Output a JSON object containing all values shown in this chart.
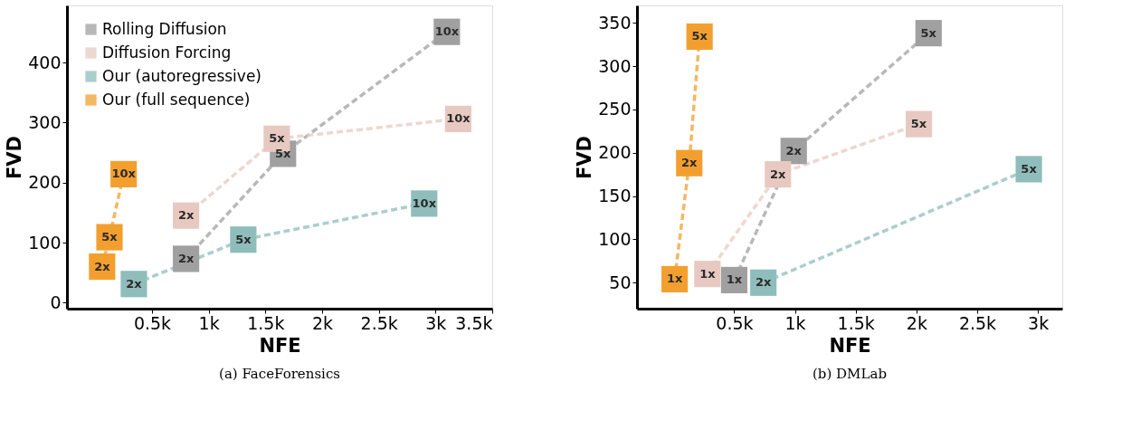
{
  "chart_data": [
    {
      "type": "line",
      "xlabel": "NFE",
      "ylabel": "FVD",
      "marker": "square",
      "line_style": "dashed",
      "grid": false,
      "legend": "top left",
      "annotations": [
        "(a) FaceForensics",
        {
          "text": "2x",
          "x": 800,
          "y": 73
        },
        {
          "text": "5x",
          "x": 1655,
          "y": 248
        },
        {
          "text": "10x",
          "x": 3100,
          "y": 451
        },
        {
          "text": "2x",
          "x": 800,
          "y": 145
        },
        {
          "text": "5x",
          "x": 1600,
          "y": 273
        },
        {
          "text": "10x",
          "x": 3200,
          "y": 306
        },
        {
          "text": "2x",
          "x": 340,
          "y": 31
        },
        {
          "text": "5x",
          "x": 1305,
          "y": 105
        },
        {
          "text": "10x",
          "x": 2900,
          "y": 165
        },
        {
          "text": "2x",
          "x": 60,
          "y": 60
        },
        {
          "text": "5x",
          "x": 125,
          "y": 109
        },
        {
          "text": "10x",
          "x": 250,
          "y": 214
        }
      ],
      "xlim": [
        -250,
        3500
      ],
      "xticks": [
        {
          "value": 500,
          "label": "0.5k"
        },
        {
          "value": 1000,
          "label": "1k"
        },
        {
          "value": 1500,
          "label": "1.5k"
        },
        {
          "value": 2000,
          "label": "2k"
        },
        {
          "value": 2500,
          "label": "2.5k"
        },
        {
          "value": 3000,
          "label": "3k"
        },
        {
          "value": 3500,
          "label": "3.5k"
        }
      ],
      "ylim": [
        -10,
        495
      ],
      "yticks": [
        0,
        100,
        200,
        300,
        400
      ],
      "series": [
        {
          "name": "Rolling Diffusion",
          "color": "#a0a0a0",
          "x": [
            800,
            1655,
            3100
          ],
          "values": [
            73,
            248,
            451
          ]
        },
        {
          "name": "Diffusion Forcing",
          "color": "#e8c9c2",
          "x": [
            800,
            1600,
            3200
          ],
          "values": [
            145,
            273,
            306
          ]
        },
        {
          "name": "Our (autoregressive)",
          "color": "#8fbdbc",
          "x": [
            340,
            1305,
            2900
          ],
          "values": [
            31,
            105,
            165
          ]
        },
        {
          "name": "Our (full sequence)",
          "color": "#f39f2f",
          "x": [
            60,
            125,
            250
          ],
          "values": [
            60,
            109,
            214
          ]
        }
      ]
    },
    {
      "type": "line",
      "xlabel": "NFE",
      "ylabel": "FVD",
      "marker": "square",
      "line_style": "dashed",
      "grid": false,
      "legend": false,
      "annotations": [
        "(b) DMLab",
        {
          "text": "1x",
          "x": 500,
          "y": 53
        },
        {
          "text": "2x",
          "x": 990,
          "y": 202
        },
        {
          "text": "5x",
          "x": 2100,
          "y": 338
        },
        {
          "text": "1x",
          "x": 280,
          "y": 60
        },
        {
          "text": "2x",
          "x": 860,
          "y": 175
        },
        {
          "text": "5x",
          "x": 2020,
          "y": 233
        },
        {
          "text": "2x",
          "x": 740,
          "y": 50
        },
        {
          "text": "5x",
          "x": 2925,
          "y": 181
        },
        {
          "text": "1x",
          "x": 10,
          "y": 54
        },
        {
          "text": "2x",
          "x": 130,
          "y": 188
        },
        {
          "text": "5x",
          "x": 215,
          "y": 334
        }
      ],
      "xlim": [
        -300,
        3200
      ],
      "xticks": [
        {
          "value": 500,
          "label": "0.5k"
        },
        {
          "value": 1000,
          "label": "1k"
        },
        {
          "value": 1500,
          "label": "1.5k"
        },
        {
          "value": 2000,
          "label": "2k"
        },
        {
          "value": 2500,
          "label": "2.5k"
        },
        {
          "value": 3000,
          "label": "3k"
        }
      ],
      "ylim": [
        20,
        370
      ],
      "yticks": [
        50,
        100,
        150,
        200,
        250,
        300,
        350
      ],
      "series": [
        {
          "color": "#a0a0a0",
          "x": [
            500,
            990,
            2100
          ],
          "values": [
            53,
            202,
            338
          ]
        },
        {
          "color": "#e8c9c2",
          "x": [
            280,
            860,
            2020
          ],
          "values": [
            60,
            175,
            233
          ]
        },
        {
          "color": "#8fbdbc",
          "x": [
            740,
            2925
          ],
          "values": [
            50,
            181
          ]
        },
        {
          "color": "#f39f2f",
          "x": [
            10,
            130,
            215
          ],
          "values": [
            54,
            188,
            334
          ]
        }
      ]
    }
  ]
}
